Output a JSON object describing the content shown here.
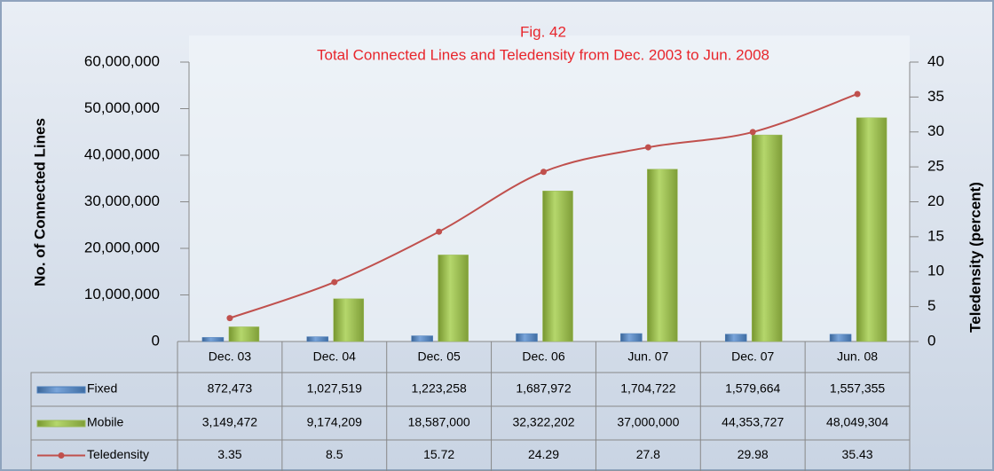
{
  "chart_data": {
    "type": "bar_line",
    "title": "Fig. 42",
    "subtitle": "Total Connected Lines and Teledensity from Dec. 2003 to Jun. 2008",
    "y_label": "No. of Connected Lines",
    "y2_label": "Teledensity (percent)",
    "categories": [
      "Dec. 03",
      "Dec. 04",
      "Dec. 05",
      "Dec. 06",
      "Jun. 07",
      "Dec. 07",
      "Jun. 08"
    ],
    "series": [
      {
        "name": "Fixed",
        "type": "bar",
        "color": "#4f81bd",
        "values": [
          872473,
          1027519,
          1223258,
          1687972,
          1704722,
          1579664,
          1557355
        ],
        "value_labels": [
          "872,473",
          "1,027,519",
          "1,223,258",
          "1,687,972",
          "1,704,722",
          "1,579,664",
          "1,557,355"
        ]
      },
      {
        "name": "Mobile",
        "type": "bar",
        "color": "#9bbb59",
        "values": [
          3149472,
          9174209,
          18587000,
          32322202,
          37000000,
          44353727,
          48049304
        ],
        "value_labels": [
          "3,149,472",
          "9,174,209",
          "18,587,000",
          "32,322,202",
          "37,000,000",
          "44,353,727",
          "48,049,304"
        ]
      },
      {
        "name": "Teledensity",
        "type": "line",
        "axis": "y2",
        "color": "#c0504d",
        "values": [
          3.35,
          8.5,
          15.72,
          24.29,
          27.8,
          29.98,
          35.43
        ]
      }
    ],
    "ylim": [
      0,
      60000000
    ],
    "yticks": [
      0,
      {
        "value": 10000000,
        "label": "10,000,000"
      },
      {
        "value": 20000000,
        "label": "20,000,000"
      },
      {
        "value": 30000000,
        "label": "30,000,000"
      },
      {
        "value": 40000000,
        "label": "40,000,000"
      },
      {
        "value": 50000000,
        "label": "50,000,000"
      },
      {
        "value": 60000000,
        "label": "60,000,000"
      }
    ],
    "y2lim": [
      0,
      40
    ],
    "y2ticks": [
      0,
      5,
      10,
      15,
      20,
      25,
      30,
      35,
      40
    ],
    "grid": false
  }
}
